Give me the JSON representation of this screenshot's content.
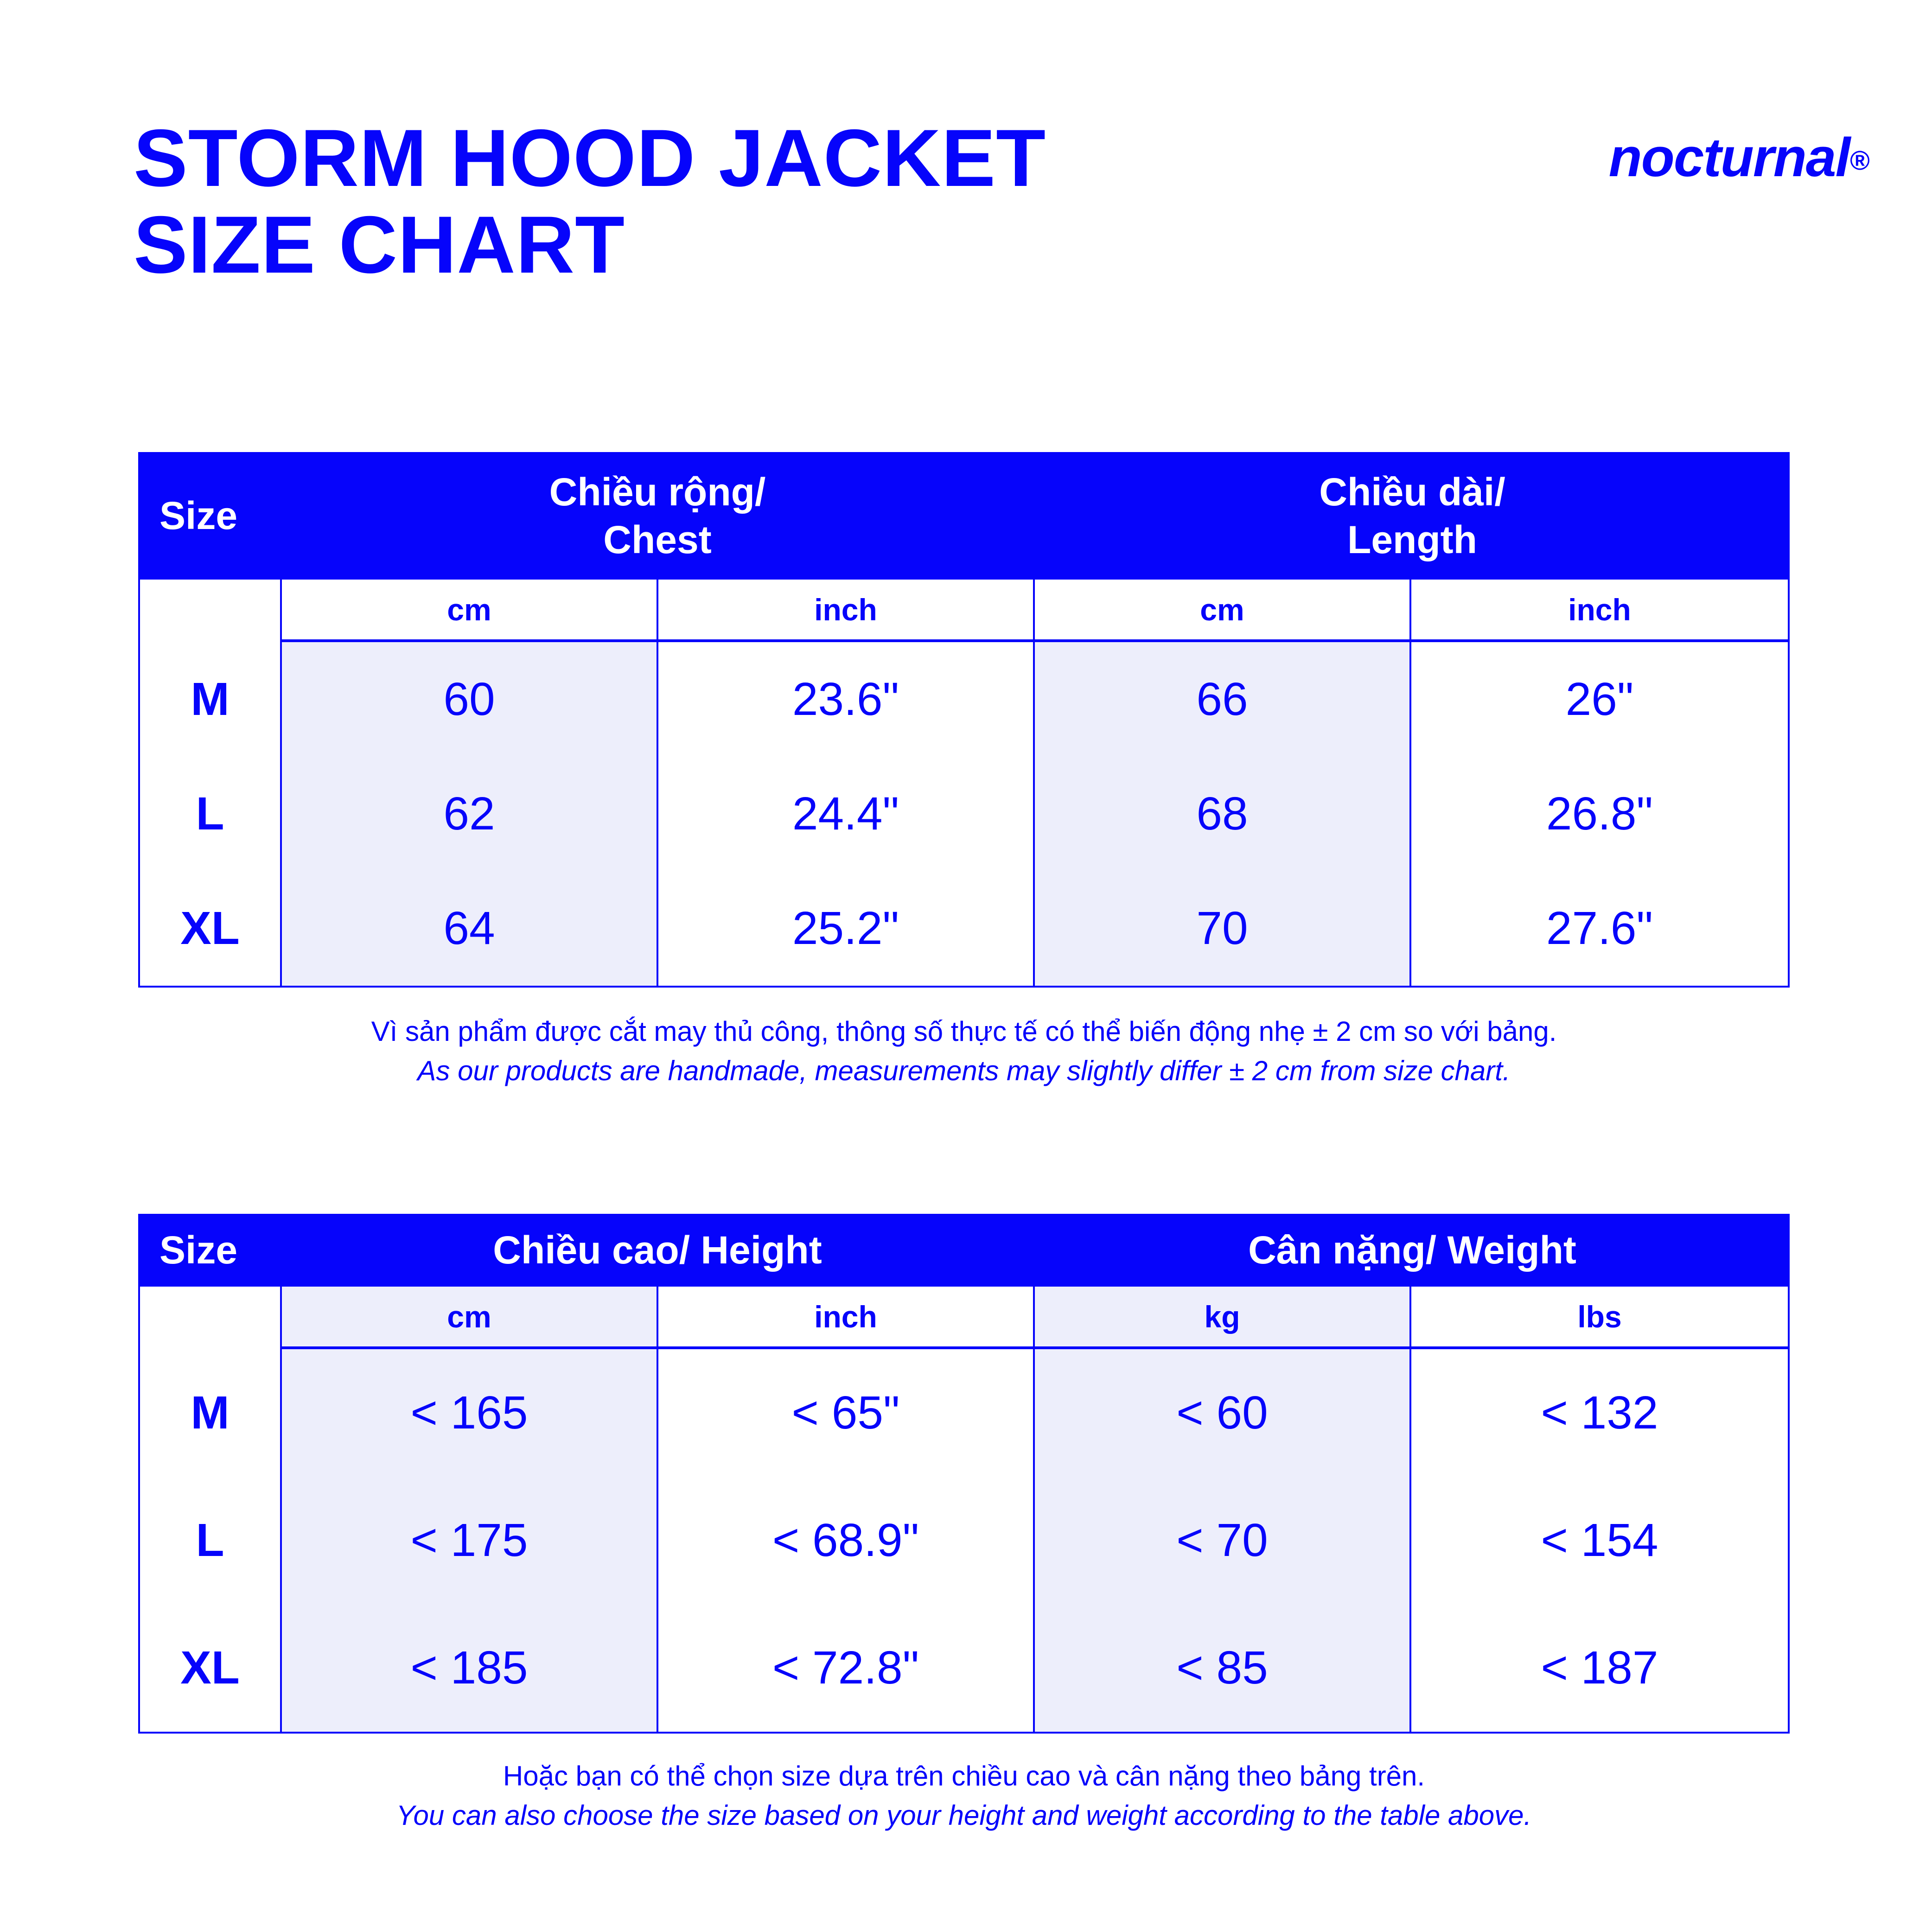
{
  "page": {
    "title_line1": "STORM HOOD JACKET",
    "title_line2": "SIZE CHART"
  },
  "brand": {
    "name": "nocturnal",
    "reg": "®"
  },
  "colors": {
    "accent": "#0604FB",
    "row_tint": "#EDEEFB"
  },
  "table1": {
    "header": {
      "size": "Size",
      "group1_line1": "Chiều rộng/",
      "group1_line2": "Chest",
      "group2_line1": "Chiều dài/",
      "group2_line2": "Length"
    },
    "units": [
      "cm",
      "inch",
      "cm",
      "inch"
    ],
    "rows": [
      {
        "size": "M",
        "values": [
          "60",
          "23.6\"",
          "66",
          "26\""
        ]
      },
      {
        "size": "L",
        "values": [
          "62",
          "24.4\"",
          "68",
          "26.8\""
        ]
      },
      {
        "size": "XL",
        "values": [
          "64",
          "25.2\"",
          "70",
          "27.6\""
        ]
      }
    ],
    "note_vi": "Vì sản phẩm được cắt may thủ công, thông số thực tế có thể biến động nhẹ ± 2 cm so với bảng.",
    "note_en": "As our products are handmade, measurements may slightly differ ± 2 cm from size chart."
  },
  "table2": {
    "header": {
      "size": "Size",
      "group1": "Chiều cao/ Height",
      "group2": "Cân nặng/ Weight"
    },
    "units": [
      "cm",
      "inch",
      "kg",
      "lbs"
    ],
    "rows": [
      {
        "size": "M",
        "values": [
          "< 165",
          "< 65\"",
          "< 60",
          "< 132"
        ]
      },
      {
        "size": "L",
        "values": [
          "< 175",
          "< 68.9\"",
          "< 70",
          "< 154"
        ]
      },
      {
        "size": "XL",
        "values": [
          "< 185",
          "< 72.8\"",
          "< 85",
          "< 187"
        ]
      }
    ],
    "note_vi": "Hoặc bạn có thể chọn size dựa trên chiều cao và cân nặng theo bảng trên.",
    "note_en": "You can also choose the size based on your height and weight according to the table above."
  }
}
